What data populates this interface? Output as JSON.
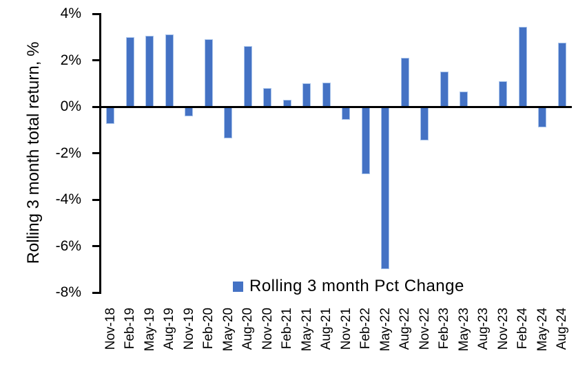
{
  "chart_data": {
    "type": "bar",
    "title": "",
    "xlabel": "",
    "ylabel": "Rolling 3 month total return, %",
    "categories": [
      "Nov-18",
      "Feb-19",
      "May-19",
      "Aug-19",
      "Nov-19",
      "Feb-20",
      "May-20",
      "Aug-20",
      "Nov-20",
      "Feb-21",
      "May-21",
      "Aug-21",
      "Nov-21",
      "Feb-22",
      "May-22",
      "Aug-22",
      "Nov-22",
      "Feb-23",
      "May-23",
      "Aug-23",
      "Nov-23",
      "Feb-24",
      "May-24",
      "Aug-24"
    ],
    "values": [
      -0.75,
      3.0,
      3.05,
      3.1,
      -0.4,
      2.9,
      -1.35,
      2.6,
      0.8,
      0.3,
      1.0,
      1.05,
      -0.55,
      -2.9,
      -7.0,
      2.1,
      -1.45,
      1.5,
      0.65,
      0.0,
      1.1,
      3.45,
      -0.9,
      2.75
    ],
    "ylim": [
      -8,
      4
    ],
    "y_ticks": [
      {
        "value": 4,
        "label": "4%"
      },
      {
        "value": 2,
        "label": "2%"
      },
      {
        "value": 0,
        "label": "0%"
      },
      {
        "value": -2,
        "label": "-2%"
      },
      {
        "value": -4,
        "label": "-4%"
      },
      {
        "value": -6,
        "label": "-6%"
      },
      {
        "value": -8,
        "label": "-8%"
      }
    ],
    "grid": false,
    "legend": {
      "position": "bottom-inside",
      "label": "Rolling 3 month Pct Change"
    },
    "colors": {
      "bar_fill": "#4472C4",
      "bar_border": "#A9C4EB",
      "axis": "#000000",
      "text": "#000000",
      "background": "#FFFFFF"
    }
  }
}
